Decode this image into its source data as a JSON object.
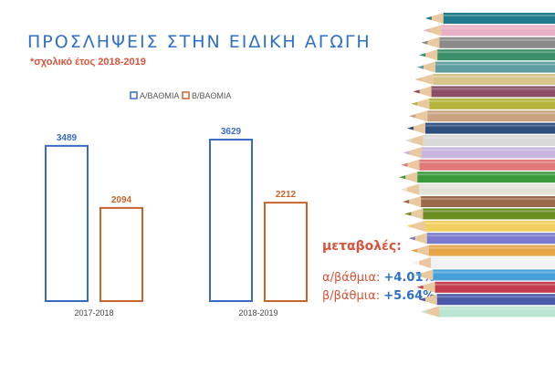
{
  "title": "ΠΡΟΣΛΗΨΕΙΣ ΣΤΗΝ ΕΙΔΙΚΗ ΑΓΩΓΗ",
  "subtitle": "*σχολικό έτος 2018-2019",
  "changes": {
    "heading": "μεταβολές:",
    "items": [
      {
        "label": "α/βάθμια:",
        "value": "+4.01%"
      },
      {
        "label": "β/βάθμια:",
        "value": "+5.64%"
      }
    ]
  },
  "colors": {
    "series_a": "#3a6bc4",
    "series_b": "#c8642a",
    "accent_red": "#d9533b"
  },
  "chart_data": {
    "type": "bar",
    "categories": [
      "2017-2018",
      "2018-2019"
    ],
    "series": [
      {
        "name": "Α/ΒΑΘΜΙΑ",
        "values": [
          3489,
          3629
        ],
        "color": "#3a6bc4"
      },
      {
        "name": "Β/ΒΑΘΜΙΑ",
        "values": [
          2094,
          2212
        ],
        "color": "#c8642a"
      }
    ],
    "ylim": [
      0,
      3650
    ],
    "legend": "top",
    "grid": false,
    "bar_style": "outline"
  },
  "pencil_colors": [
    "#1f7a8c",
    "#e8b0c4",
    "#8a8a8a",
    "#3b8f6b",
    "#5f9ea0",
    "#d7c48a",
    "#8a4f64",
    "#b4b43c",
    "#c9a37f",
    "#2f4f7f",
    "#d9d9d9",
    "#c9b4de",
    "#e07a7a",
    "#3c9a3c",
    "#e3e3d8",
    "#9a6a4a",
    "#6b8e23",
    "#f0d060",
    "#7a7acd",
    "#e5a64a",
    "#f2f2f2",
    "#46a0d9",
    "#c33d4e",
    "#4b5aa8",
    "#b9e5d2"
  ]
}
